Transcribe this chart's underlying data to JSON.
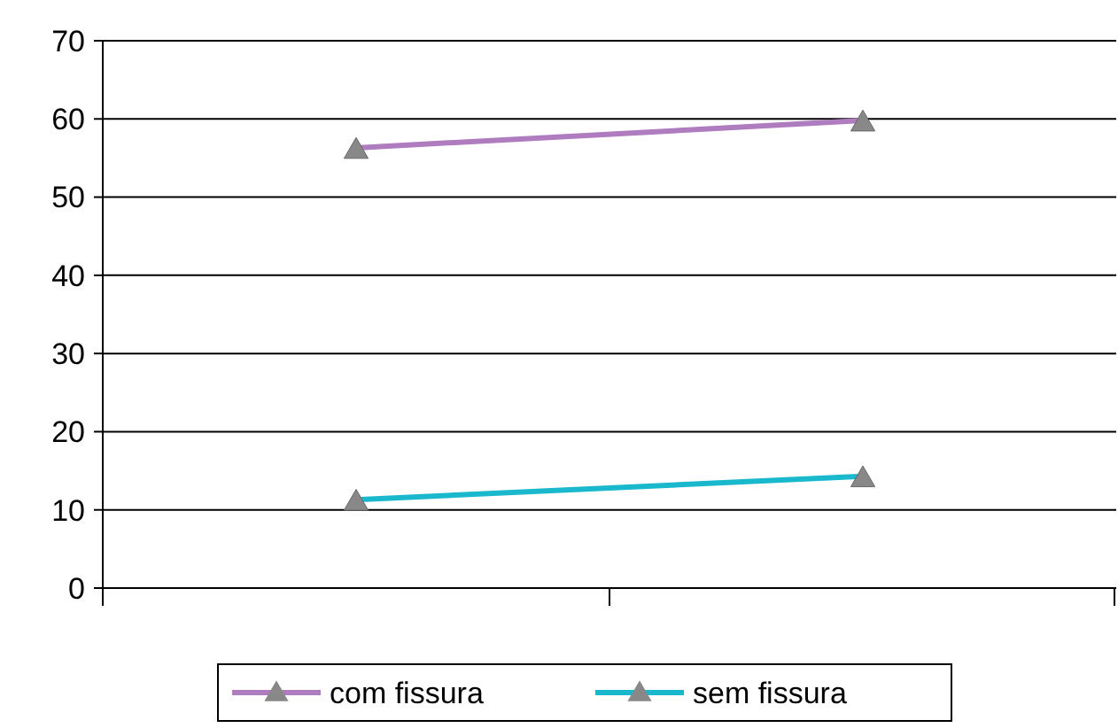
{
  "chart_data": {
    "type": "line",
    "categories": [
      null,
      null
    ],
    "series": [
      {
        "name": "com fissura",
        "color": "#b07cc0",
        "values": [
          56.3,
          59.8
        ]
      },
      {
        "name": "sem fissura",
        "color": "#1ab8cc",
        "values": [
          11.3,
          14.3
        ]
      }
    ],
    "ylim": [
      0,
      70
    ],
    "yticks": [
      0,
      10,
      20,
      30,
      40,
      50,
      60,
      70
    ],
    "grid": "y",
    "legend": "bottom",
    "marker": "triangle",
    "line_style": "solid"
  }
}
